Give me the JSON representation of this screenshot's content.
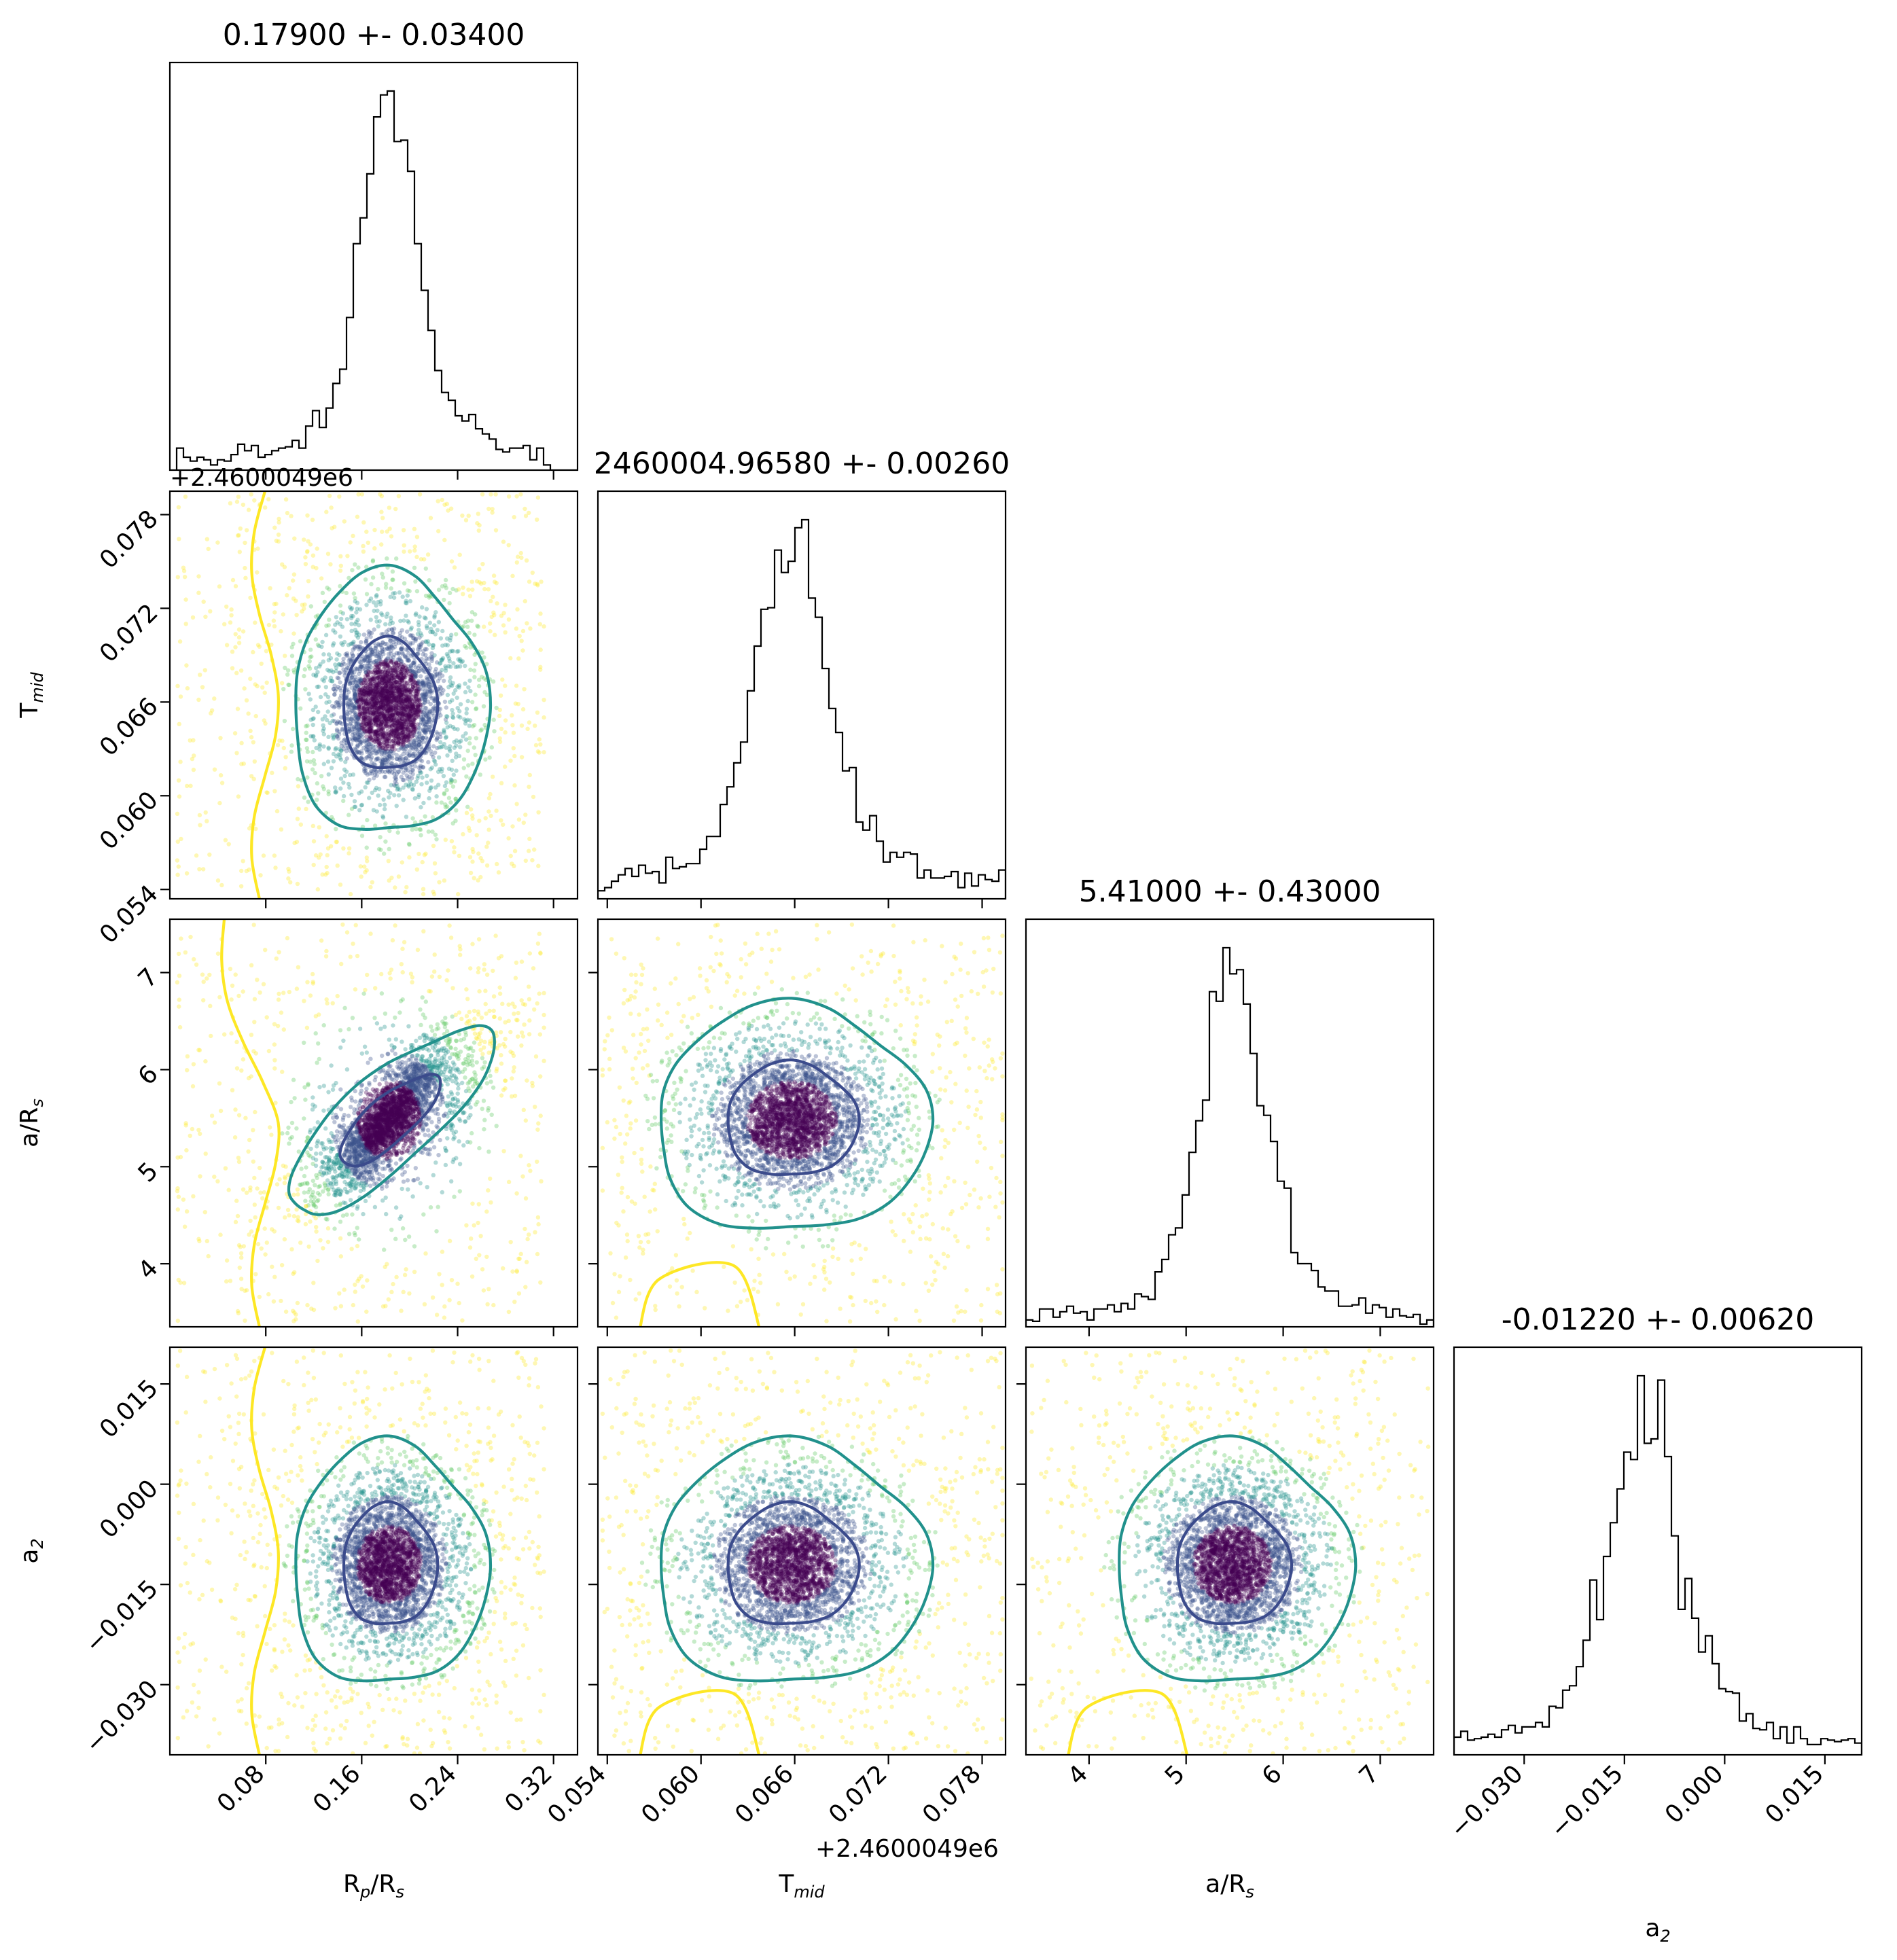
{
  "chart_data": {
    "type": "scatter",
    "subtype": "corner-plot",
    "parameters": [
      {
        "label": "R_p/R_s",
        "range": [
          0.0,
          0.34
        ],
        "ticks": [
          0.08,
          0.16,
          0.24,
          0.32
        ],
        "tick_labels": [
          "0.08",
          "0.16",
          "0.24",
          "0.32"
        ],
        "offset": "",
        "title": "0.17900 +- 0.03400",
        "median": 0.179,
        "sigma": 0.034
      },
      {
        "label": "T_mid",
        "range": [
          0.0534,
          0.0795
        ],
        "ticks": [
          0.054,
          0.06,
          0.066,
          0.072,
          0.078
        ],
        "tick_labels": [
          "0.054",
          "0.060",
          "0.066",
          "0.072",
          "0.078"
        ],
        "offset": "+2.4600049e6",
        "title": "2460004.96580 +- 0.00260",
        "median": 0.0658,
        "sigma": 0.0026
      },
      {
        "label": "a/R_s",
        "range": [
          3.35,
          7.55
        ],
        "ticks": [
          4,
          5,
          6,
          7
        ],
        "tick_labels": [
          "4",
          "5",
          "6",
          "7"
        ],
        "offset": "",
        "title": "5.41000 +- 0.43000",
        "median": 5.41,
        "sigma": 0.43
      },
      {
        "label": "a_2",
        "range": [
          -0.0405,
          0.0205
        ],
        "ticks": [
          -0.03,
          -0.015,
          0.0,
          0.015
        ],
        "tick_labels": [
          "−0.030",
          "−0.015",
          "0.000",
          "0.015"
        ],
        "offset": "",
        "title": "-0.01220 +- 0.00620",
        "median": -0.0122,
        "sigma": 0.0062
      }
    ],
    "axis_labels": {
      "x": [
        {
          "main": "R",
          "sub": "p",
          "rest": "/R",
          "sub2": "s"
        },
        {
          "main": "T",
          "sub": "mid",
          "rest": "",
          "sub2": ""
        },
        {
          "main": "a/R",
          "sub": "s",
          "rest": "",
          "sub2": ""
        },
        {
          "main": "a",
          "sub": "2",
          "rest": "",
          "sub2": ""
        }
      ],
      "y": [
        null,
        {
          "main": "T",
          "sub": "mid",
          "rest": "",
          "sub2": ""
        },
        {
          "main": "a/R",
          "sub": "s",
          "rest": "",
          "sub2": ""
        },
        {
          "main": "a",
          "sub": "2",
          "rest": "",
          "sub2": ""
        }
      ]
    },
    "histogram_note": "1D marginal histograms are heavy-tailed peaked distributions centered at the medians",
    "contour_levels": [
      "inner (dark purple)",
      "middle (teal)",
      "outer (yellow)"
    ],
    "colors": {
      "hist": "#000000",
      "contour_inner": "#3b4b8c",
      "contour_mid": "#21918c",
      "contour_outer": "#fde725",
      "points_core": "#440154",
      "points_mid": "#3b528b",
      "points_teal": "#21918c",
      "points_green": "#5ec962",
      "points_outer": "#fde725"
    },
    "grid": false,
    "legend": "none"
  }
}
